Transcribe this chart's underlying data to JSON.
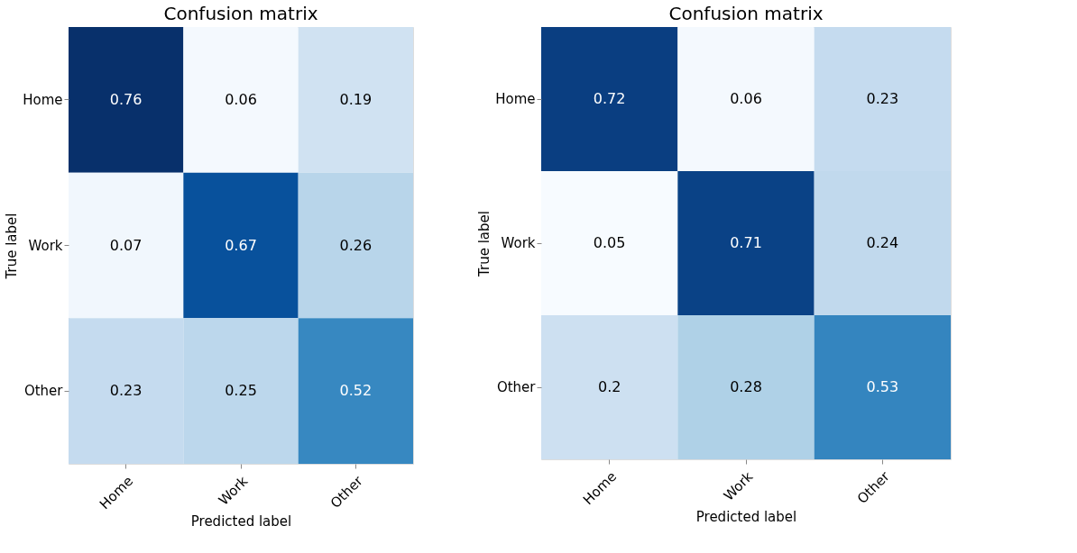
{
  "chart_data": [
    {
      "type": "heatmap",
      "title": "Confusion matrix",
      "xlabel": "Predicted label",
      "ylabel": "True label",
      "categories": [
        "Home",
        "Work",
        "Other"
      ],
      "y_categories": [
        "Home",
        "Work",
        "Other"
      ],
      "data_labels": true,
      "cells": [
        [
          0.76,
          0.06,
          0.19
        ],
        [
          0.07,
          0.67,
          0.26
        ],
        [
          0.23,
          0.25,
          0.52
        ]
      ]
    },
    {
      "type": "heatmap",
      "title": "Confusion matrix",
      "xlabel": "Predicted label",
      "ylabel": "True label",
      "categories": [
        "Home",
        "Work",
        "Other"
      ],
      "y_categories": [
        "Home",
        "Work",
        "Other"
      ],
      "data_labels": true,
      "cells": [
        [
          0.72,
          0.06,
          0.23
        ],
        [
          0.05,
          0.71,
          0.24
        ],
        [
          0.2,
          0.28,
          0.53
        ]
      ]
    }
  ]
}
